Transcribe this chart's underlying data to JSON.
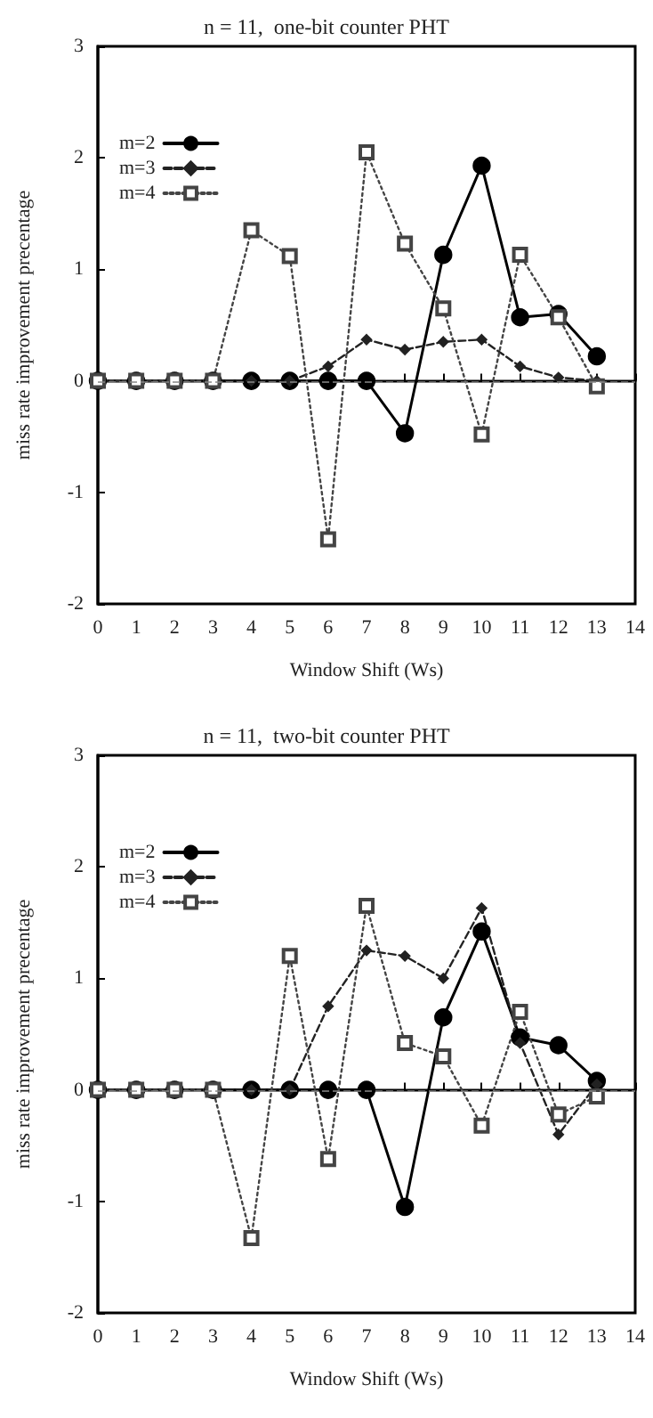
{
  "chart_data": [
    {
      "type": "line",
      "title": "n = 11,  one-bit counter PHT",
      "xlabel": "Window Shift (Ws)",
      "ylabel": "miss rate improvement precentage",
      "x": [
        0,
        1,
        2,
        3,
        4,
        5,
        6,
        7,
        8,
        9,
        10,
        11,
        12,
        13
      ],
      "series": [
        {
          "name": "m=2",
          "color": "#000000",
          "marker": "circle",
          "line_style": "solid",
          "values": [
            0,
            0,
            0,
            0,
            0,
            0,
            0,
            0,
            -0.47,
            1.13,
            1.93,
            0.57,
            0.6,
            0.22
          ]
        },
        {
          "name": "m=3",
          "color": "#222222",
          "marker": "diamond",
          "line_style": "dashed",
          "values": [
            0,
            0,
            0,
            0,
            0,
            0,
            0.13,
            0.37,
            0.28,
            0.35,
            0.37,
            0.13,
            0.03,
            0
          ]
        },
        {
          "name": "m=4",
          "color": "#444444",
          "marker": "square",
          "line_style": "dotted",
          "values": [
            0,
            0,
            0,
            0,
            1.35,
            1.12,
            -1.42,
            2.05,
            1.23,
            0.65,
            -0.48,
            1.13,
            0.57,
            -0.05
          ]
        }
      ],
      "xlim": [
        0,
        14
      ],
      "xticks": [
        0,
        1,
        2,
        3,
        4,
        5,
        6,
        7,
        8,
        9,
        10,
        11,
        12,
        13,
        14
      ],
      "ylim": [
        -2,
        3
      ],
      "yticks": [
        -2,
        -1,
        0,
        1,
        2,
        3
      ],
      "ref_lines": [
        {
          "axis": "y",
          "value": 0,
          "color": "#888888",
          "line_style": "dashed"
        }
      ],
      "legend": "top left",
      "grid": false
    },
    {
      "type": "line",
      "title": "n = 11,  two-bit counter PHT",
      "xlabel": "Window Shift (Ws)",
      "ylabel": "miss rate improvement precentage",
      "x": [
        0,
        1,
        2,
        3,
        4,
        5,
        6,
        7,
        8,
        9,
        10,
        11,
        12,
        13
      ],
      "series": [
        {
          "name": "m=2",
          "color": "#000000",
          "marker": "circle",
          "line_style": "solid",
          "values": [
            0,
            0,
            0,
            0,
            0,
            0,
            0,
            0,
            -1.05,
            0.65,
            1.42,
            0.47,
            0.4,
            0.08
          ]
        },
        {
          "name": "m=3",
          "color": "#222222",
          "marker": "diamond",
          "line_style": "dashed",
          "values": [
            0,
            0,
            0,
            0,
            0,
            0,
            0.75,
            1.25,
            1.2,
            1.0,
            1.63,
            0.42,
            -0.4,
            0.05
          ]
        },
        {
          "name": "m=4",
          "color": "#444444",
          "marker": "square",
          "line_style": "dotted",
          "values": [
            0,
            0,
            0,
            0,
            -1.33,
            1.2,
            -0.62,
            1.65,
            0.42,
            0.3,
            -0.32,
            0.7,
            -0.22,
            -0.06
          ]
        }
      ],
      "xlim": [
        0,
        14
      ],
      "xticks": [
        0,
        1,
        2,
        3,
        4,
        5,
        6,
        7,
        8,
        9,
        10,
        11,
        12,
        13,
        14
      ],
      "ylim": [
        -2,
        3
      ],
      "yticks": [
        -2,
        -1,
        0,
        1,
        2,
        3
      ],
      "ref_lines": [
        {
          "axis": "y",
          "value": 0,
          "color": "#888888",
          "line_style": "dashed"
        }
      ],
      "legend": "top left",
      "grid": false
    }
  ]
}
